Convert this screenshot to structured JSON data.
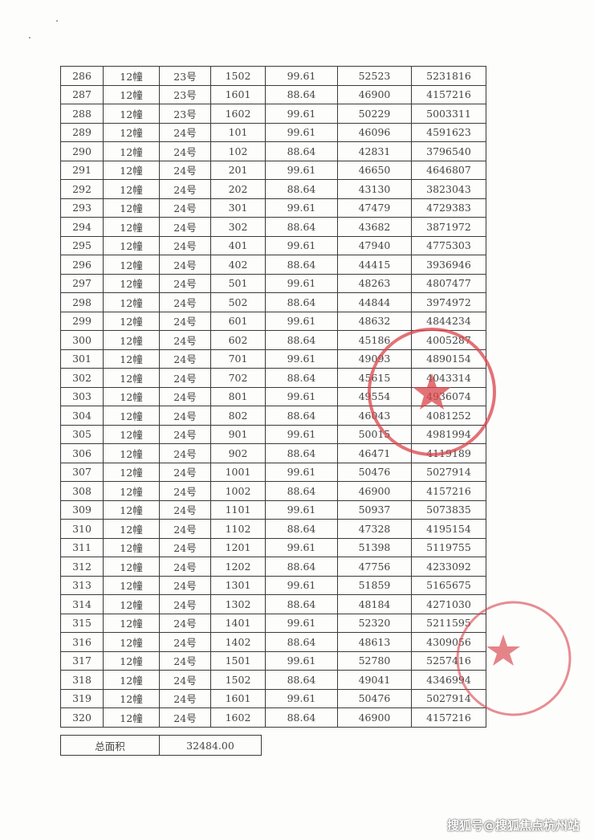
{
  "table": {
    "rows": [
      [
        "286",
        "12幢",
        "23号",
        "1502",
        "99.61",
        "52523",
        "5231816"
      ],
      [
        "287",
        "12幢",
        "23号",
        "1601",
        "88.64",
        "46900",
        "4157216"
      ],
      [
        "288",
        "12幢",
        "23号",
        "1602",
        "99.61",
        "50229",
        "5003311"
      ],
      [
        "289",
        "12幢",
        "24号",
        "101",
        "99.61",
        "46096",
        "4591623"
      ],
      [
        "290",
        "12幢",
        "24号",
        "102",
        "88.64",
        "42831",
        "3796540"
      ],
      [
        "291",
        "12幢",
        "24号",
        "201",
        "99.61",
        "46650",
        "4646807"
      ],
      [
        "292",
        "12幢",
        "24号",
        "202",
        "88.64",
        "43130",
        "3823043"
      ],
      [
        "293",
        "12幢",
        "24号",
        "301",
        "99.61",
        "47479",
        "4729383"
      ],
      [
        "294",
        "12幢",
        "24号",
        "302",
        "88.64",
        "43682",
        "3871972"
      ],
      [
        "295",
        "12幢",
        "24号",
        "401",
        "99.61",
        "47940",
        "4775303"
      ],
      [
        "296",
        "12幢",
        "24号",
        "402",
        "88.64",
        "44415",
        "3936946"
      ],
      [
        "297",
        "12幢",
        "24号",
        "501",
        "99.61",
        "48263",
        "4807477"
      ],
      [
        "298",
        "12幢",
        "24号",
        "502",
        "88.64",
        "44844",
        "3974972"
      ],
      [
        "299",
        "12幢",
        "24号",
        "601",
        "99.61",
        "48632",
        "4844234"
      ],
      [
        "300",
        "12幢",
        "24号",
        "602",
        "88.64",
        "45186",
        "4005287"
      ],
      [
        "301",
        "12幢",
        "24号",
        "701",
        "99.61",
        "49093",
        "4890154"
      ],
      [
        "302",
        "12幢",
        "24号",
        "702",
        "88.64",
        "45615",
        "4043314"
      ],
      [
        "303",
        "12幢",
        "24号",
        "801",
        "99.61",
        "49554",
        "4936074"
      ],
      [
        "304",
        "12幢",
        "24号",
        "802",
        "88.64",
        "46043",
        "4081252"
      ],
      [
        "305",
        "12幢",
        "24号",
        "901",
        "99.61",
        "50015",
        "4981994"
      ],
      [
        "306",
        "12幢",
        "24号",
        "902",
        "88.64",
        "46471",
        "4119189"
      ],
      [
        "307",
        "12幢",
        "24号",
        "1001",
        "99.61",
        "50476",
        "5027914"
      ],
      [
        "308",
        "12幢",
        "24号",
        "1002",
        "88.64",
        "46900",
        "4157216"
      ],
      [
        "309",
        "12幢",
        "24号",
        "1101",
        "99.61",
        "50937",
        "5073835"
      ],
      [
        "310",
        "12幢",
        "24号",
        "1102",
        "88.64",
        "47328",
        "4195154"
      ],
      [
        "311",
        "12幢",
        "24号",
        "1201",
        "99.61",
        "51398",
        "5119755"
      ],
      [
        "312",
        "12幢",
        "24号",
        "1202",
        "88.64",
        "47756",
        "4233092"
      ],
      [
        "313",
        "12幢",
        "24号",
        "1301",
        "99.61",
        "51859",
        "5165675"
      ],
      [
        "314",
        "12幢",
        "24号",
        "1302",
        "88.64",
        "48184",
        "4271030"
      ],
      [
        "315",
        "12幢",
        "24号",
        "1401",
        "99.61",
        "52320",
        "5211595"
      ],
      [
        "316",
        "12幢",
        "24号",
        "1402",
        "88.64",
        "48613",
        "4309056"
      ],
      [
        "317",
        "12幢",
        "24号",
        "1501",
        "99.61",
        "52780",
        "5257416"
      ],
      [
        "318",
        "12幢",
        "24号",
        "1502",
        "88.64",
        "49041",
        "4346994"
      ],
      [
        "319",
        "12幢",
        "24号",
        "1601",
        "99.61",
        "50476",
        "5027914"
      ],
      [
        "320",
        "12幢",
        "24号",
        "1602",
        "88.64",
        "46900",
        "4157216"
      ]
    ]
  },
  "total": {
    "label": "总面积",
    "value": "32484.00"
  },
  "watermark": "搜狐号@搜狐焦点杭州站",
  "colors": {
    "stamp": "#d9434a",
    "grid": "#3a3a3a"
  }
}
